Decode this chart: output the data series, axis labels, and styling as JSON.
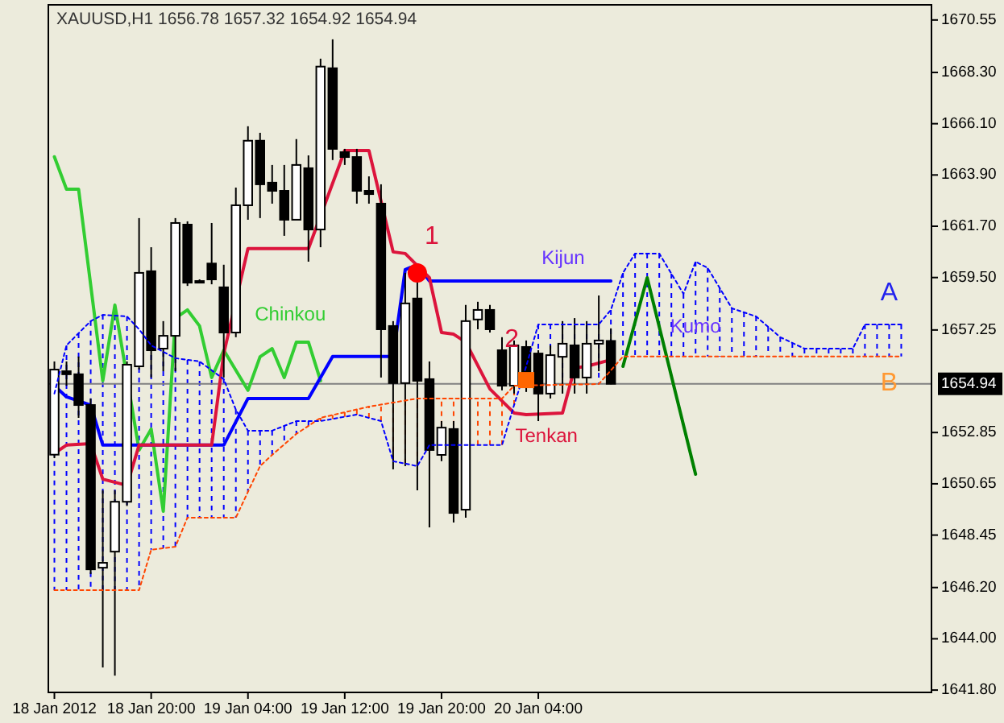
{
  "chart_data": {
    "type": "candlestick",
    "title": "XAUUSD,H1  1656.78 1657.32 1654.92 1654.94",
    "x": [
      "2012-01-18T12:00",
      "2012-01-18T13:00",
      "2012-01-18T14:00",
      "2012-01-18T15:00",
      "2012-01-18T16:00",
      "2012-01-18T17:00",
      "2012-01-18T18:00",
      "2012-01-18T19:00",
      "2012-01-18T20:00",
      "2012-01-18T21:00",
      "2012-01-18T22:00",
      "2012-01-18T23:00",
      "2012-01-19T00:00",
      "2012-01-19T01:00",
      "2012-01-19T02:00",
      "2012-01-19T03:00",
      "2012-01-19T04:00",
      "2012-01-19T05:00",
      "2012-01-19T06:00",
      "2012-01-19T07:00",
      "2012-01-19T08:00",
      "2012-01-19T09:00",
      "2012-01-19T10:00",
      "2012-01-19T11:00",
      "2012-01-19T12:00",
      "2012-01-19T13:00",
      "2012-01-19T14:00",
      "2012-01-19T15:00",
      "2012-01-19T16:00",
      "2012-01-19T17:00",
      "2012-01-19T18:00",
      "2012-01-19T19:00",
      "2012-01-19T20:00",
      "2012-01-19T21:00",
      "2012-01-19T22:00",
      "2012-01-19T23:00",
      "2012-01-20T00:00",
      "2012-01-20T01:00",
      "2012-01-20T02:00",
      "2012-01-20T03:00",
      "2012-01-20T04:00",
      "2012-01-20T05:00",
      "2012-01-20T06:00",
      "2012-01-20T07:00",
      "2012-01-20T08:00",
      "2012-01-20T09:00",
      "2012-01-20T10:00"
    ],
    "ohlc": [
      [
        1651.9,
        1655.9,
        1651.75,
        1655.55
      ],
      [
        1655.48,
        1655.9,
        1654.86,
        1655.35
      ],
      [
        1655.35,
        1656.11,
        1653.48,
        1654.03
      ],
      [
        1654.03,
        1654.31,
        1646.78,
        1646.98
      ],
      [
        1647.05,
        1650.37,
        1642.77,
        1647.26
      ],
      [
        1647.74,
        1650.37,
        1642.42,
        1649.88
      ],
      [
        1649.88,
        1655.9,
        1649.7,
        1655.76
      ],
      [
        1655.69,
        1662.05,
        1655.55,
        1659.7
      ],
      [
        1659.77,
        1660.8,
        1655.21,
        1656.38
      ],
      [
        1656.45,
        1657.63,
        1655.48,
        1657.0
      ],
      [
        1657.0,
        1662.05,
        1655.48,
        1661.84
      ],
      [
        1661.77,
        1661.91,
        1659.14,
        1659.28
      ],
      [
        1659.35,
        1659.42,
        1659.28,
        1659.28
      ],
      [
        1660.1,
        1661.84,
        1659.21,
        1659.42
      ],
      [
        1659.08,
        1660.05,
        1655.21,
        1657.14
      ],
      [
        1657.14,
        1663.36,
        1656.94,
        1662.6
      ],
      [
        1662.6,
        1665.99,
        1661.98,
        1665.37
      ],
      [
        1665.37,
        1665.71,
        1662.05,
        1663.5
      ],
      [
        1663.57,
        1664.33,
        1662.67,
        1663.22
      ],
      [
        1663.22,
        1664.33,
        1661.29,
        1661.98
      ],
      [
        1661.98,
        1665.44,
        1661.98,
        1664.33
      ],
      [
        1664.19,
        1664.74,
        1660.18,
        1661.56
      ],
      [
        1661.56,
        1668.89,
        1660.8,
        1668.55
      ],
      [
        1668.48,
        1669.72,
        1664.54,
        1665.02
      ],
      [
        1664.88,
        1665.02,
        1664.33,
        1664.67
      ],
      [
        1664.67,
        1665.02,
        1662.67,
        1663.22
      ],
      [
        1663.22,
        1663.84,
        1662.67,
        1663.08
      ],
      [
        1662.67,
        1663.5,
        1655.21,
        1657.28
      ],
      [
        1657.42,
        1657.63,
        1651.27,
        1654.97
      ],
      [
        1654.97,
        1659.7,
        1651.41,
        1658.39
      ],
      [
        1658.6,
        1659.35,
        1650.37,
        1655.07
      ],
      [
        1655.14,
        1655.9,
        1648.78,
        1652.1
      ],
      [
        1651.89,
        1653.34,
        1651.62,
        1653.06
      ],
      [
        1653.0,
        1653.34,
        1648.99,
        1649.4
      ],
      [
        1649.54,
        1658.32,
        1649.2,
        1657.63
      ],
      [
        1657.7,
        1658.46,
        1657.28,
        1658.11
      ],
      [
        1658.11,
        1658.32,
        1657.14,
        1657.28
      ],
      [
        1656.38,
        1656.94,
        1654.66,
        1654.86
      ],
      [
        1654.86,
        1656.8,
        1654.52,
        1656.59
      ],
      [
        1656.52,
        1656.8,
        1654.59,
        1654.97
      ],
      [
        1656.24,
        1656.38,
        1653.34,
        1654.52
      ],
      [
        1654.52,
        1656.59,
        1654.31,
        1656.17
      ],
      [
        1656.1,
        1657.63,
        1654.52,
        1656.66
      ],
      [
        1656.59,
        1657.76,
        1654.52,
        1655.21
      ],
      [
        1655.21,
        1657.63,
        1654.52,
        1656.66
      ],
      [
        1656.66,
        1658.73,
        1655.48,
        1656.8
      ],
      [
        1656.78,
        1657.32,
        1654.92,
        1654.94
      ]
    ],
    "series": [
      {
        "type": "line",
        "color": "#ff4500",
        "line_style": "dashed",
        "marker": "none",
        "x": [
          "2012-01-18T12:00",
          "2012-01-18T19:00",
          "2012-01-18T20:00",
          "2012-01-18T22:00",
          "2012-01-18T23:00",
          "2012-01-19T03:00",
          "2012-01-19T05:00",
          "2012-01-19T06:00",
          "2012-01-19T08:00",
          "2012-01-19T10:00",
          "2012-01-19T14:00",
          "2012-01-19T18:00",
          "2012-01-20T01:00",
          "2012-01-20T02:00",
          "2012-01-20T09:00",
          "2012-01-20T11:00",
          "2012-01-21T10:00"
        ],
        "values": [
          1646.09,
          1646.09,
          1647.82,
          1647.95,
          1649.2,
          1649.2,
          1651.41,
          1651.89,
          1652.79,
          1653.48,
          1653.96,
          1654.31,
          1654.31,
          1654.86,
          1654.93,
          1656.11,
          1656.11
        ]
      },
      {
        "type": "line",
        "color": "#0000ff",
        "line_style": "dashed",
        "marker": "none",
        "x": [
          "2012-01-18T12:00",
          "2012-01-18T13:00",
          "2012-01-18T15:00",
          "2012-01-18T16:00",
          "2012-01-18T18:00",
          "2012-01-18T19:00",
          "2012-01-18T20:00",
          "2012-01-18T22:00",
          "2012-01-19T00:00",
          "2012-01-19T02:00",
          "2012-01-19T03:00",
          "2012-01-19T04:00",
          "2012-01-19T06:00",
          "2012-01-19T08:00",
          "2012-01-19T10:00",
          "2012-01-19T13:00",
          "2012-01-19T15:00",
          "2012-01-19T16:00",
          "2012-01-19T18:00",
          "2012-01-19T19:00",
          "2012-01-20T01:00",
          "2012-01-20T02:00",
          "2012-01-20T03:00",
          "2012-01-20T04:00",
          "2012-01-20T09:00",
          "2012-01-20T10:00",
          "2012-01-20T11:00",
          "2012-01-20T12:00",
          "2012-01-20T14:00",
          "2012-01-20T16:00",
          "2012-01-20T17:00",
          "2012-01-20T18:00",
          "2012-01-20T20:00",
          "2012-01-20T22:00",
          "2012-01-21T00:00",
          "2012-01-21T02:00",
          "2012-01-21T06:00",
          "2012-01-21T07:00",
          "2012-01-21T10:00"
        ],
        "values": [
          1654.52,
          1656.59,
          1657.63,
          1657.9,
          1657.83,
          1657.28,
          1656.59,
          1656.04,
          1655.9,
          1655.14,
          1653.83,
          1652.93,
          1652.93,
          1653.34,
          1653.34,
          1653.62,
          1653.34,
          1651.62,
          1651.41,
          1652.31,
          1652.31,
          1654.03,
          1655.69,
          1657.49,
          1657.49,
          1658.11,
          1659.7,
          1660.53,
          1660.53,
          1658.8,
          1660.18,
          1659.91,
          1658.18,
          1657.83,
          1656.94,
          1656.45,
          1656.45,
          1657.49,
          1657.49
        ]
      },
      {
        "type": "line",
        "color": "#32cd32",
        "line_style": "solid",
        "marker": "none",
        "x": [
          "2012-01-18T12:00",
          "2012-01-18T13:00",
          "2012-01-18T14:00",
          "2012-01-18T16:00",
          "2012-01-18T17:00",
          "2012-01-18T19:00",
          "2012-01-18T20:00",
          "2012-01-18T21:00",
          "2012-01-18T22:00",
          "2012-01-18T23:00",
          "2012-01-19T00:00",
          "2012-01-19T01:00",
          "2012-01-19T02:00",
          "2012-01-19T04:00",
          "2012-01-19T05:00",
          "2012-01-19T06:00",
          "2012-01-19T07:00",
          "2012-01-19T08:00",
          "2012-01-19T09:00",
          "2012-01-19T10:00"
        ],
        "values": [
          1664.68,
          1663.29,
          1663.29,
          1655.07,
          1658.32,
          1652.1,
          1653.0,
          1649.47,
          1657.76,
          1658.11,
          1657.42,
          1655.21,
          1656.38,
          1654.66,
          1656.1,
          1656.45,
          1655.21,
          1656.73,
          1656.73,
          1655.07
        ]
      },
      {
        "type": "line",
        "color": "#0000ff",
        "line_style": "solid",
        "marker": "none",
        "x": [
          "2012-01-18T12:00",
          "2012-01-18T13:00",
          "2012-01-18T15:00",
          "2012-01-18T16:00",
          "2012-01-19T02:00",
          "2012-01-19T04:00",
          "2012-01-19T09:00",
          "2012-01-19T11:00",
          "2012-01-19T16:00",
          "2012-01-19T17:00",
          "2012-01-19T18:00",
          "2012-01-19T19:00",
          "2012-01-20T10:00"
        ],
        "values": [
          1654.86,
          1654.38,
          1654.03,
          1652.31,
          1652.31,
          1654.31,
          1654.31,
          1656.11,
          1656.11,
          1659.84,
          1660.05,
          1659.35,
          1659.35
        ]
      },
      {
        "type": "line",
        "color": "#dc143c",
        "line_style": "solid",
        "marker": "none",
        "x": [
          "2012-01-18T12:00",
          "2012-01-18T13:00",
          "2012-01-18T15:00",
          "2012-01-18T16:00",
          "2012-01-18T18:00",
          "2012-01-18T19:00",
          "2012-01-19T01:00",
          "2012-01-19T02:00",
          "2012-01-19T04:00",
          "2012-01-19T09:00",
          "2012-01-19T12:00",
          "2012-01-19T14:00",
          "2012-01-19T16:00",
          "2012-01-19T17:00",
          "2012-01-19T19:00",
          "2012-01-19T20:00",
          "2012-01-19T21:00",
          "2012-01-19T22:00",
          "2012-01-20T00:00",
          "2012-01-20T02:00",
          "2012-01-20T03:00",
          "2012-01-20T06:00",
          "2012-01-20T07:00",
          "2012-01-20T08:00",
          "2012-01-20T10:00"
        ],
        "values": [
          1651.96,
          1652.31,
          1652.37,
          1650.85,
          1650.58,
          1652.31,
          1652.31,
          1656.24,
          1660.74,
          1660.74,
          1664.95,
          1664.95,
          1660.6,
          1660.53,
          1659.49,
          1657.14,
          1657.07,
          1656.73,
          1654.72,
          1653.69,
          1653.62,
          1653.69,
          1655.62,
          1655.69,
          1655.97
        ]
      },
      {
        "type": "line",
        "color": "#008000",
        "line_style": "solid",
        "marker": "none",
        "x": [
          "2012-01-20T11:00",
          "2012-01-20T13:00",
          "2012-01-20T17:00"
        ],
        "values": [
          1655.69,
          1659.49,
          1651.06
        ]
      },
      {
        "type": "scatter",
        "color": "#ff0000",
        "marker": "circle",
        "x": [
          "2012-01-19T18:00"
        ],
        "values": [
          1659.7
        ]
      },
      {
        "type": "scatter",
        "color": "#ff6600",
        "marker": "square",
        "x": [
          "2012-01-20T03:00"
        ],
        "values": [
          1655.1
        ]
      }
    ],
    "annotations": [
      {
        "text": "1",
        "x": "2012-01-19T18:00",
        "y": 1659.7
      },
      {
        "text": "2",
        "x": "2012-01-20T03:00",
        "y": 1655.1
      },
      "Chinkou",
      "Kijun",
      "Tenkan",
      {
        "text": "Kumo",
        "x": "2012-01-20T17:00",
        "y": 1660.18
      },
      {
        "text": "A",
        "x": "2012-01-21T09:00",
        "y": 1657.49
      },
      {
        "text": "B",
        "x": "2012-01-21T09:00",
        "y": 1656.11
      }
    ],
    "ref_lines": [
      {
        "axis": "y",
        "value": 1654.94,
        "label": "1654.94",
        "color": "#808080"
      }
    ],
    "xlim": [
      "2012-01-18T11:30",
      "2012-01-21T12:30"
    ],
    "xticks": [
      {
        "value": "2012-01-18T12:00",
        "label": "18 Jan 2012"
      },
      {
        "value": "2012-01-18T20:00",
        "label": "18 Jan 20:00"
      },
      {
        "value": "2012-01-19T04:00",
        "label": "19 Jan 04:00"
      },
      {
        "value": "2012-01-19T12:00",
        "label": "19 Jan 12:00"
      },
      {
        "value": "2012-01-19T20:00",
        "label": "19 Jan 20:00"
      },
      {
        "value": "2012-01-20T04:00",
        "label": "20 Jan 04:00"
      }
    ],
    "ylim": [
      1641.7,
      1671.2
    ],
    "yticks": [
      1670.55,
      {
        "value": 1668.3,
        "label": "1668.30"
      },
      {
        "value": 1666.1,
        "label": "1666.10"
      },
      {
        "value": 1663.9,
        "label": "1663.90"
      },
      {
        "value": 1661.7,
        "label": "1661.70"
      },
      {
        "value": 1659.5,
        "label": "1659.50"
      },
      1657.25,
      1652.85,
      1650.65,
      1648.45,
      {
        "value": 1646.2,
        "label": "1646.20"
      },
      {
        "value": 1644.0,
        "label": "1644.00"
      },
      {
        "value": 1641.8,
        "label": "1641.80"
      }
    ]
  }
}
